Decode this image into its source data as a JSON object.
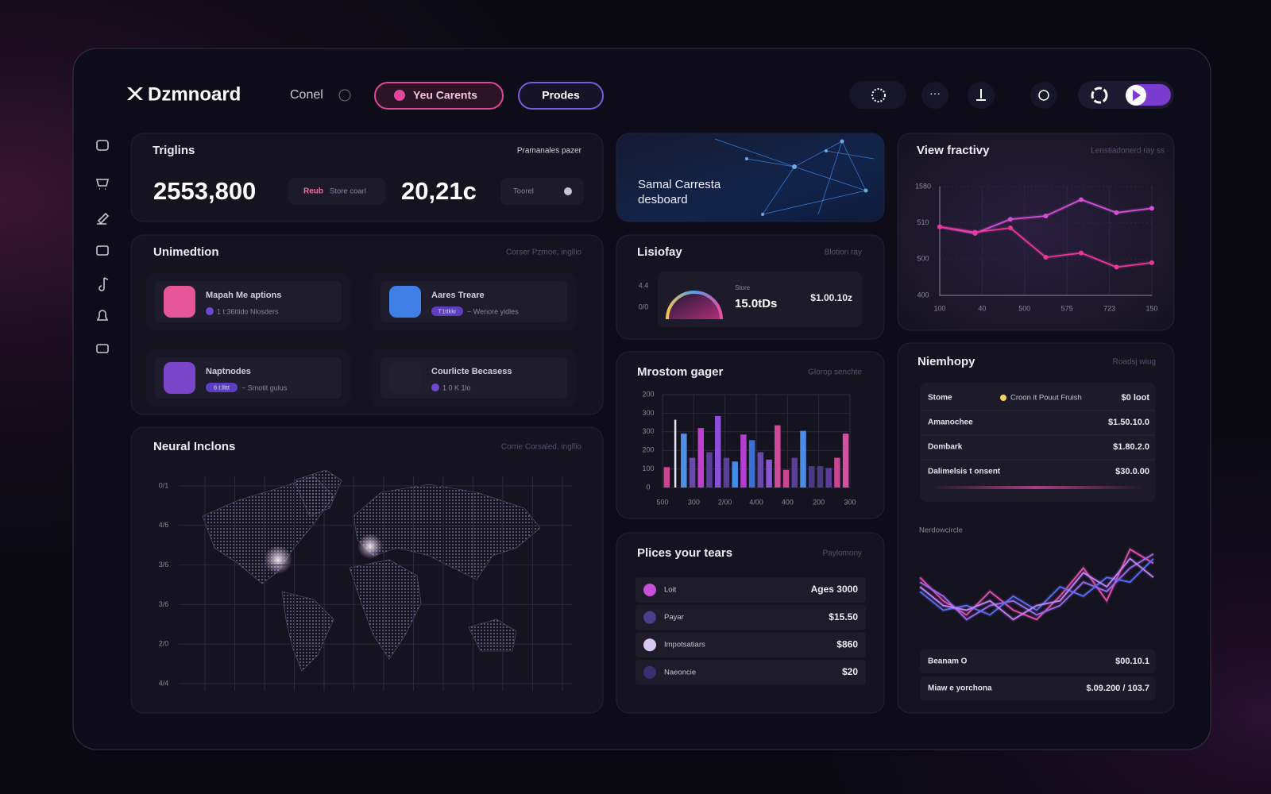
{
  "header": {
    "logo": "Dzmnoard",
    "nav": "Conel",
    "tabs": [
      "Yeu Carents",
      "Prodes"
    ]
  },
  "stats": {
    "title": "Triglins",
    "subtitle": "Pramanales pazer",
    "metrics": [
      {
        "value": "2553,800",
        "badge": "Reub",
        "note": "Store coarl"
      },
      {
        "value": "20,21c",
        "note": "Toorel"
      }
    ]
  },
  "hero": {
    "lines": [
      "Samal Carresta",
      "desboard"
    ]
  },
  "apps": {
    "title": "Unimedtion",
    "subtitle": "Corser Pzmoe, ingllio",
    "items": [
      {
        "name": "Mapah Me aptions",
        "detail": "1 t:36ttido Nlosders"
      },
      {
        "name": "Aares Treare",
        "badge": "T1ttkkr",
        "detail": "~ Wenore yidles"
      },
      {
        "name": "Naptnodes",
        "badge": "6 t:llttt",
        "detail": "~ Smotit gulus"
      },
      {
        "name": "Courlicte Becasess",
        "detail": "1 0 K 1lo"
      }
    ]
  },
  "map": {
    "title": "Neural Inclons",
    "subtitle": "Corrie Corsaled, ingllio",
    "y_labels": [
      "0/1",
      "4/6",
      "3/6",
      "3/6",
      "2/0",
      "4/4"
    ]
  },
  "gauge_panel": {
    "title": "Lisiofay",
    "subtitle": "Blotion ray",
    "scale_labels": [
      "4.4",
      "0/0"
    ],
    "label": "Store",
    "value": "15.0tDs",
    "amount": "$1.00.10z"
  },
  "prices": {
    "title": "Plices your tears",
    "subtitle": "Paylomony",
    "rows": [
      {
        "name": "Loit",
        "value": "Ages 3000"
      },
      {
        "name": "Payar",
        "value": "$15.50"
      },
      {
        "name": "Impotsatiars",
        "value": "$860"
      },
      {
        "name": "Naeoncie",
        "value": "$20"
      }
    ]
  },
  "summary": {
    "title": "Niemhopy",
    "subtitle": "Roadsj wiug",
    "rows": [
      [
        "Stome",
        "Croon it Pouut Fruish",
        "$0 loot"
      ],
      [
        "Amanochee",
        "$1.50.10.0"
      ],
      [
        "Dombark",
        "$1.80.2.0"
      ],
      [
        "Dalimelsis t onsent",
        "$30.0.00"
      ]
    ],
    "footer_rows": [
      [
        "Beanam O",
        "$00.10.1"
      ],
      [
        "Miaw e yorchona",
        "$.09.200 / 103.7"
      ]
    ]
  },
  "chart_data": [
    {
      "type": "line",
      "title": "View fractivy",
      "subtitle": "Lenstiadonerd ray ss",
      "markers": true,
      "y_labels": [
        "1580",
        "510",
        "500",
        "400"
      ],
      "x_labels": [
        "100",
        "40",
        "500",
        "575",
        "723",
        "150"
      ],
      "categories": [
        null,
        null,
        null,
        null,
        null,
        null,
        null
      ],
      "ylim": [
        0,
        100
      ],
      "series": [
        {
          "color": "#d44fd8",
          "values": [
            63,
            57,
            70,
            73,
            88,
            76,
            80
          ]
        },
        {
          "color": "#e8399a",
          "values": [
            63,
            58,
            62,
            35,
            39,
            26,
            30
          ]
        }
      ]
    },
    {
      "type": "bar",
      "title": "Mrostom gager",
      "subtitle": "Glorop senchte",
      "y_labels": [
        "200",
        "300",
        "300",
        "200",
        "100",
        "0"
      ],
      "x_labels": [
        "500",
        "300",
        "2/00",
        "4/00",
        "400",
        "200",
        "300"
      ],
      "ylim": [
        0,
        100
      ],
      "values": [
        22,
        73,
        58,
        32,
        64,
        38,
        77,
        32,
        28,
        57,
        51,
        38,
        30,
        67,
        19,
        32,
        61,
        23,
        23,
        21,
        32,
        58
      ],
      "colors": [
        "#c9478f",
        "#e8e4f4",
        "#4f8fe6",
        "#6a4aa8",
        "#c03fd0",
        "#5b3f9a",
        "#8a4ed8",
        "#5a3f98",
        "#3f8ee8",
        "#b23fd0",
        "#3a6fd6",
        "#6a4aa8",
        "#8a55d0",
        "#d04a9a",
        "#c9478f",
        "#5a3f98",
        "#4a8ce6",
        "#4a3a80",
        "#4a3a80",
        "#5a3f98",
        "#c94590",
        "#d64fa0"
      ]
    },
    {
      "type": "line",
      "title": "Nerdowcircle",
      "markers": false,
      "categories": [
        null,
        null,
        null,
        null,
        null,
        null,
        null,
        null,
        null,
        null,
        null
      ],
      "ylim": [
        0,
        100
      ],
      "series": [
        {
          "color": "#e64fb0",
          "values": [
            60,
            35,
            20,
            45,
            25,
            15,
            40,
            70,
            35,
            90,
            75
          ]
        },
        {
          "color": "#9b6cf0",
          "values": [
            55,
            40,
            15,
            30,
            35,
            20,
            30,
            55,
            45,
            70,
            85
          ]
        },
        {
          "color": "#5b6ef5",
          "values": [
            45,
            25,
            30,
            20,
            40,
            25,
            50,
            40,
            60,
            55,
            80
          ]
        },
        {
          "color": "#c084fc",
          "values": [
            50,
            30,
            25,
            35,
            15,
            30,
            35,
            65,
            50,
            80,
            60
          ]
        }
      ]
    }
  ]
}
